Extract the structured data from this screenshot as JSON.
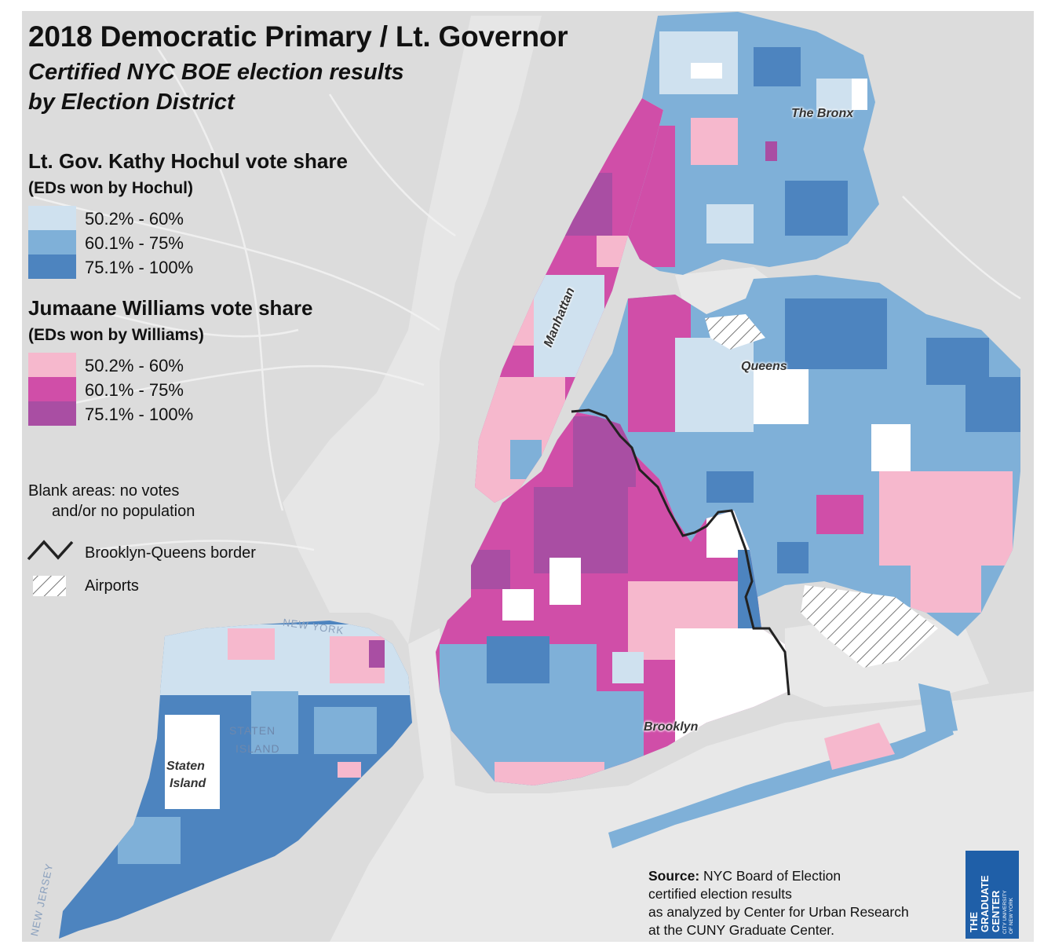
{
  "title": "2018 Democratic Primary / Lt. Governor",
  "subtitle_line1": "Certified NYC BOE election results",
  "subtitle_line2": "by Election District",
  "colors": {
    "hochul_low": "#cfe1ef",
    "hochul_mid": "#7fb0d8",
    "hochul_high": "#4d84bf",
    "williams_low": "#f6b8cd",
    "williams_mid": "#d04ea8",
    "williams_high": "#a94ea3",
    "land": "#dcdcdc",
    "water": "#e8e8e8",
    "blank": "#ffffff",
    "border": "#222222"
  },
  "legend": {
    "hochul": {
      "title": "Lt. Gov. Kathy Hochul vote share",
      "subtitle": "(EDs won by Hochul)",
      "items": [
        {
          "label": "50.2% - 60%"
        },
        {
          "label": "60.1% - 75%"
        },
        {
          "label": "75.1% - 100%"
        }
      ]
    },
    "williams": {
      "title": "Jumaane Williams vote share",
      "subtitle": "(EDs won by Williams)",
      "items": [
        {
          "label": "50.2% - 60%"
        },
        {
          "label": "60.1% - 75%"
        },
        {
          "label": "75.1% - 100%"
        }
      ]
    },
    "blank_line1": "Blank areas: no votes",
    "blank_line2": "and/or no population",
    "border_label": "Brooklyn-Queens border",
    "airports_label": "Airports"
  },
  "places": {
    "bronx": "The Bronx",
    "manhattan": "Manhattan",
    "queens": "Queens",
    "brooklyn": "Brooklyn",
    "staten_island_line1": "Staten",
    "staten_island_line2": "Island",
    "basemap_staten": "STATEN",
    "basemap_island": "ISLAND",
    "basemap_new_york": "NEW YORK",
    "basemap_new_jersey": "NEW JERSEY"
  },
  "source": {
    "bold": "Source:",
    "line1_rest": " NYC Board of Election",
    "line2": "certified election results",
    "line3": "as analyzed by Center for Urban Research",
    "line4": "at the CUNY Graduate Center."
  },
  "logo": {
    "line1": "THE",
    "line2": "GRADUATE",
    "line3": "CENTER",
    "small1": "CITY UNIVERSITY",
    "small2": "OF NEW YORK"
  }
}
